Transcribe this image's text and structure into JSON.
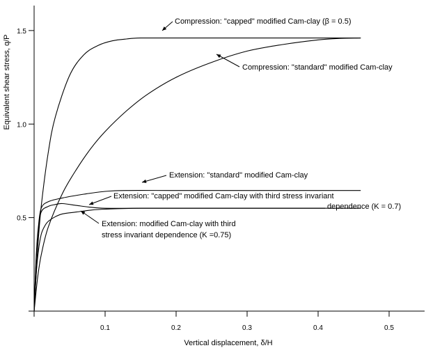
{
  "chart_data": {
    "type": "line",
    "title": "",
    "xlabel": "Vertical displacement, δ/H",
    "ylabel": "Equivalent shear stress, q/P",
    "xlim": [
      0,
      0.55
    ],
    "ylim": [
      0,
      1.6
    ],
    "grid": false,
    "x_ticks": [
      {
        "value": 0.1,
        "label": "0.1"
      },
      {
        "value": 0.2,
        "label": "0.2"
      },
      {
        "value": 0.3,
        "label": "0.3"
      },
      {
        "value": 0.4,
        "label": "0.4"
      },
      {
        "value": 0.5,
        "label": "0.5"
      }
    ],
    "y_ticks": [
      {
        "value": 0.5,
        "label": "0.5"
      },
      {
        "value": 1.0,
        "label": "1.0"
      },
      {
        "value": 1.5,
        "label": "1.5"
      }
    ],
    "series": [
      {
        "name": "Compression: \"capped\" modified Cam-clay (β = 0.5)",
        "x": [
          0,
          0.005,
          0.01,
          0.02,
          0.03,
          0.05,
          0.07,
          0.09,
          0.11,
          0.13,
          0.15,
          0.2,
          0.3,
          0.4,
          0.46
        ],
        "y": [
          0,
          0.33,
          0.56,
          0.85,
          1.04,
          1.26,
          1.37,
          1.42,
          1.445,
          1.455,
          1.46,
          1.46,
          1.46,
          1.46,
          1.46
        ]
      },
      {
        "name": "Compression: \"standard\" modified Cam-clay",
        "x": [
          0,
          0.005,
          0.01,
          0.02,
          0.04,
          0.06,
          0.08,
          0.1,
          0.13,
          0.16,
          0.2,
          0.25,
          0.3,
          0.35,
          0.4,
          0.43,
          0.46
        ],
        "y": [
          0,
          0.18,
          0.3,
          0.45,
          0.63,
          0.76,
          0.87,
          0.96,
          1.07,
          1.16,
          1.25,
          1.33,
          1.39,
          1.425,
          1.45,
          1.458,
          1.46
        ]
      },
      {
        "name": "Extension: \"standard\" modified Cam-clay",
        "x": [
          0,
          0.003,
          0.006,
          0.01,
          0.02,
          0.04,
          0.07,
          0.1,
          0.13,
          0.2,
          0.3,
          0.46
        ],
        "y": [
          0,
          0.3,
          0.45,
          0.55,
          0.585,
          0.605,
          0.625,
          0.64,
          0.645,
          0.645,
          0.645,
          0.645
        ]
      },
      {
        "name": "Extension: \"capped\" modified Cam-clay with third stress invariant dependence (K = 0.7)",
        "x": [
          0,
          0.003,
          0.006,
          0.01,
          0.02,
          0.03,
          0.04,
          0.06,
          0.08,
          0.1,
          0.15,
          0.3,
          0.46
        ],
        "y": [
          0,
          0.28,
          0.43,
          0.53,
          0.56,
          0.57,
          0.575,
          0.565,
          0.555,
          0.55,
          0.55,
          0.55,
          0.55
        ]
      },
      {
        "name": "Extension: modified Cam-clay with third stress invariant dependence (K = 0.75)",
        "x": [
          0,
          0.003,
          0.006,
          0.01,
          0.015,
          0.02,
          0.03,
          0.04,
          0.06,
          0.08,
          0.1,
          0.15,
          0.25,
          0.35,
          0.41
        ],
        "y": [
          0,
          0.2,
          0.32,
          0.41,
          0.455,
          0.48,
          0.505,
          0.52,
          0.53,
          0.54,
          0.545,
          0.55,
          0.55,
          0.55,
          0.55
        ]
      }
    ],
    "annotations": [
      {
        "id": "ann-comp-capped",
        "lines": [
          "Compression: \"capped\" modified Cam-clay (β  = 0.5)"
        ],
        "anchor_series": 0
      },
      {
        "id": "ann-comp-standard",
        "lines": [
          "Compression: \"standard\" modified Cam-clay"
        ],
        "anchor_series": 1
      },
      {
        "id": "ann-ext-standard",
        "lines": [
          "Extension: \"standard\" modified Cam-clay"
        ],
        "anchor_series": 2
      },
      {
        "id": "ann-ext-capped",
        "lines": [
          "Extension: \"capped\" modified Cam-clay with third stress invariant",
          "dependence (K = 0.7)"
        ],
        "anchor_series": 3
      },
      {
        "id": "ann-ext-k075",
        "lines": [
          "Extension: modified Cam-clay with third",
          "stress invariant dependence (K =0.75)"
        ],
        "anchor_series": 4
      }
    ]
  }
}
